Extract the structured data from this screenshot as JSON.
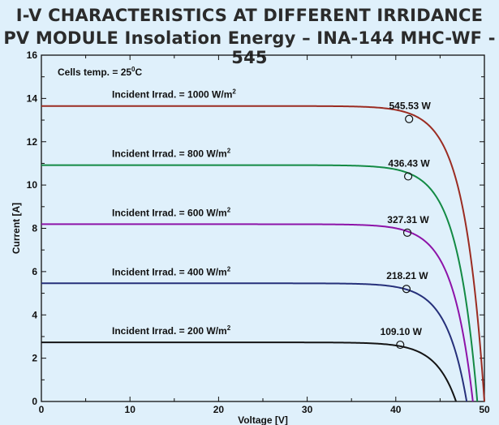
{
  "title": {
    "line1": "I-V CHARACTERISTICS AT DIFFERENT IRRIDANCE",
    "line2": "PV MODULE Insolation Energy – INA-144 MHC-WF - 545"
  },
  "chart_data": {
    "type": "line",
    "title": "I-V CHARACTERISTICS AT DIFFERENT IRRIDANCE",
    "subtitle": "PV MODULE Insolation Energy – INA-144 MHC-WF - 545",
    "xlabel": "Voltage [V]",
    "ylabel": "Current [A]",
    "xlim": [
      0,
      50
    ],
    "ylim": [
      0,
      16
    ],
    "xticks": [
      "0",
      "10",
      "20",
      "30",
      "40",
      "50"
    ],
    "yticks": [
      "0",
      "2",
      "4",
      "6",
      "8",
      "10",
      "12",
      "14",
      "16"
    ],
    "grid": false,
    "annotation": {
      "text": "Cells temp. = 25",
      "sup": "0",
      "suffix": "C"
    },
    "series": [
      {
        "name": "Incident Irrad. = 1000 W/m",
        "sup": "2",
        "color": "#9b2c22",
        "isc": 13.65,
        "voc": 50.0,
        "mpp": {
          "v": 41.5,
          "i": 13.05,
          "label": "545.53 W"
        }
      },
      {
        "name": "Incident Irrad. = 800 W/m",
        "sup": "2",
        "color": "#138a44",
        "isc": 10.92,
        "voc": 49.2,
        "mpp": {
          "v": 41.4,
          "i": 10.4,
          "label": "436.43 W"
        }
      },
      {
        "name": "Incident Irrad. = 600 W/m",
        "sup": "2",
        "color": "#8d13a8",
        "isc": 8.19,
        "voc": 48.7,
        "mpp": {
          "v": 41.3,
          "i": 7.8,
          "label": "327.31 W"
        }
      },
      {
        "name": "Incident Irrad. = 400 W/m",
        "sup": "2",
        "color": "#26307a",
        "isc": 5.46,
        "voc": 48.0,
        "mpp": {
          "v": 41.2,
          "i": 5.2,
          "label": "218.21 W"
        }
      },
      {
        "name": "Incident Irrad. = 200 W/m",
        "sup": "2",
        "color": "#141414",
        "isc": 2.73,
        "voc": 46.8,
        "mpp": {
          "v": 40.5,
          "i": 2.62,
          "label": "109.10 W"
        }
      }
    ]
  }
}
